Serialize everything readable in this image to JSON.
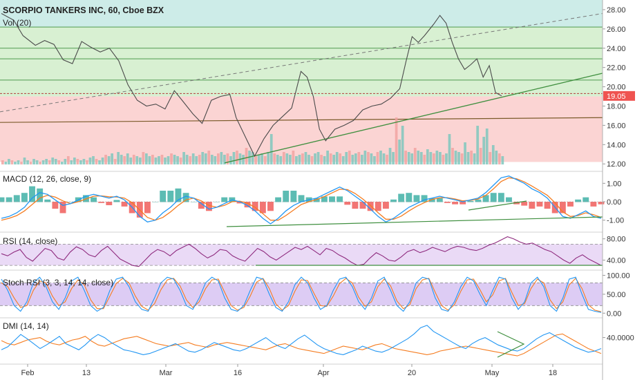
{
  "chart_data": {
    "type": "line",
    "title": "SCORPIO TANKERS INC, 60, Cboe BZX",
    "price": {
      "overlay_label": "Vol (20)",
      "last_price": "19.05",
      "ylim": [
        11.8,
        29.0
      ],
      "ticks": [
        "28.00",
        "26.00",
        "24.00",
        "22.00",
        "20.00",
        "18.00",
        "16.00",
        "14.00",
        "12.00"
      ],
      "tick_values": [
        28,
        26,
        24,
        22,
        20,
        18,
        16,
        14,
        12
      ],
      "horizontal_levels": [
        26.2,
        24.0,
        22.9,
        20.7,
        19.3
      ],
      "zone_split": 19.0,
      "support_level": 16.8,
      "series": [
        {
          "x": 0,
          "y": 27.6
        },
        {
          "x": 4,
          "y": 26.9
        },
        {
          "x": 7,
          "y": 25.3
        },
        {
          "x": 11,
          "y": 24.3
        },
        {
          "x": 14,
          "y": 24.8
        },
        {
          "x": 17,
          "y": 24.4
        },
        {
          "x": 20,
          "y": 22.8
        },
        {
          "x": 23,
          "y": 22.4
        },
        {
          "x": 26,
          "y": 24.7
        },
        {
          "x": 29,
          "y": 24.1
        },
        {
          "x": 32,
          "y": 23.6
        },
        {
          "x": 35,
          "y": 24.0
        },
        {
          "x": 38,
          "y": 22.7
        },
        {
          "x": 41,
          "y": 20.2
        },
        {
          "x": 44,
          "y": 18.6
        },
        {
          "x": 47,
          "y": 18.0
        },
        {
          "x": 50,
          "y": 18.2
        },
        {
          "x": 53,
          "y": 17.7
        },
        {
          "x": 56,
          "y": 19.6
        },
        {
          "x": 59,
          "y": 18.4
        },
        {
          "x": 62,
          "y": 17.2
        },
        {
          "x": 65,
          "y": 16.2
        },
        {
          "x": 68,
          "y": 18.6
        },
        {
          "x": 71,
          "y": 19.0
        },
        {
          "x": 74,
          "y": 19.2
        },
        {
          "x": 76,
          "y": 16.8
        },
        {
          "x": 79,
          "y": 14.8
        },
        {
          "x": 82,
          "y": 12.8
        },
        {
          "x": 85,
          "y": 14.6
        },
        {
          "x": 88,
          "y": 16.0
        },
        {
          "x": 91,
          "y": 16.9
        },
        {
          "x": 94,
          "y": 17.8
        },
        {
          "x": 97,
          "y": 21.6
        },
        {
          "x": 99,
          "y": 21.0
        },
        {
          "x": 101,
          "y": 19.0
        },
        {
          "x": 103,
          "y": 15.6
        },
        {
          "x": 105,
          "y": 14.4
        },
        {
          "x": 108,
          "y": 15.6
        },
        {
          "x": 111,
          "y": 16.0
        },
        {
          "x": 114,
          "y": 16.5
        },
        {
          "x": 117,
          "y": 17.6
        },
        {
          "x": 120,
          "y": 18.0
        },
        {
          "x": 123,
          "y": 18.2
        },
        {
          "x": 126,
          "y": 18.8
        },
        {
          "x": 129,
          "y": 19.8
        },
        {
          "x": 131,
          "y": 22.6
        },
        {
          "x": 133,
          "y": 25.2
        },
        {
          "x": 135,
          "y": 24.6
        },
        {
          "x": 137,
          "y": 25.3
        },
        {
          "x": 140,
          "y": 26.5
        },
        {
          "x": 142,
          "y": 27.4
        },
        {
          "x": 144,
          "y": 26.6
        },
        {
          "x": 146,
          "y": 24.6
        },
        {
          "x": 148,
          "y": 22.9
        },
        {
          "x": 150,
          "y": 21.8
        },
        {
          "x": 152,
          "y": 22.3
        },
        {
          "x": 154,
          "y": 22.9
        },
        {
          "x": 156,
          "y": 21.0
        },
        {
          "x": 158,
          "y": 22.2
        },
        {
          "x": 160,
          "y": 19.4
        },
        {
          "x": 162,
          "y": 19.05
        }
      ]
    },
    "volume": {
      "ylim": [
        0,
        40
      ],
      "values": [
        3,
        2,
        4,
        3,
        2,
        3,
        2,
        5,
        3,
        2,
        4,
        3,
        2,
        3,
        4,
        3,
        5,
        4,
        3,
        2,
        4,
        6,
        3,
        5,
        4,
        3,
        4,
        3,
        5,
        6,
        4,
        3,
        5,
        7,
        6,
        8,
        4,
        9,
        7,
        6,
        8,
        5,
        7,
        6,
        5,
        9,
        8,
        6,
        7,
        5,
        6,
        7,
        5,
        6,
        8,
        7,
        6,
        5,
        9,
        7,
        6,
        8,
        6,
        7,
        9,
        8,
        10,
        7,
        6,
        8,
        9,
        7,
        8,
        6,
        9,
        10,
        8,
        7,
        12,
        10,
        9,
        6,
        7,
        8,
        6,
        9,
        22,
        8,
        7,
        6,
        9,
        8,
        7,
        10,
        6,
        7,
        8,
        9,
        7,
        6,
        8,
        9,
        7,
        6,
        10,
        8,
        7,
        9,
        8,
        6,
        9,
        10,
        7,
        8,
        9,
        7,
        10,
        9,
        8,
        6,
        9,
        10,
        8,
        7,
        12,
        9,
        34,
        18,
        28,
        10,
        9,
        8,
        12,
        10,
        9,
        7,
        11,
        9,
        8,
        10,
        9,
        7,
        8,
        22,
        12,
        10,
        9,
        8,
        16,
        9,
        10,
        8,
        28,
        12,
        20,
        26,
        9,
        14,
        10,
        8,
        6
      ]
    },
    "macd": {
      "title": "MACD (12, 26, close, 9)",
      "ticks": [
        "1.00",
        "0.00",
        "-1.00"
      ],
      "tick_values": [
        1,
        0,
        -1
      ],
      "ylim": [
        -1.5,
        1.5
      ],
      "macd_line": [
        -0.9,
        -0.8,
        -0.6,
        -0.3,
        0.2,
        0.5,
        0.4,
        0.1,
        -0.2,
        -0.1,
        0.1,
        0.3,
        0.4,
        0.3,
        0.2,
        0.3,
        0.1,
        -0.3,
        -0.8,
        -1.1,
        -1.0,
        -0.6,
        -0.3,
        0.1,
        0.3,
        0.2,
        -0.1,
        -0.4,
        -0.3,
        -0.1,
        0.1,
        0.0,
        -0.2,
        -0.5,
        -0.9,
        -1.2,
        -0.9,
        -0.5,
        -0.2,
        0.0,
        0.1,
        0.2,
        0.4,
        0.6,
        0.8,
        0.6,
        0.3,
        0.0,
        -0.4,
        -0.8,
        -1.1,
        -0.9,
        -0.6,
        -0.3,
        -0.1,
        0.1,
        0.2,
        0.3,
        0.2,
        0.1,
        0.0,
        0.1,
        0.2,
        0.5,
        0.9,
        1.3,
        1.4,
        1.2,
        1.0,
        0.7,
        0.5,
        0.2,
        -0.3,
        -0.8,
        -0.9,
        -0.7,
        -0.5,
        -0.8,
        -0.9
      ],
      "signal_line": [
        -1.0,
        -0.9,
        -0.75,
        -0.5,
        -0.15,
        0.2,
        0.35,
        0.25,
        0.05,
        -0.1,
        0.0,
        0.15,
        0.3,
        0.32,
        0.27,
        0.26,
        0.2,
        -0.05,
        -0.45,
        -0.85,
        -1.0,
        -0.85,
        -0.55,
        -0.2,
        0.1,
        0.2,
        0.05,
        -0.2,
        -0.3,
        -0.2,
        0.0,
        0.03,
        -0.08,
        -0.3,
        -0.65,
        -1.0,
        -1.0,
        -0.75,
        -0.45,
        -0.15,
        0.0,
        0.12,
        0.28,
        0.48,
        0.68,
        0.66,
        0.45,
        0.15,
        -0.2,
        -0.6,
        -0.95,
        -0.95,
        -0.78,
        -0.5,
        -0.25,
        -0.05,
        0.12,
        0.22,
        0.22,
        0.15,
        0.05,
        0.08,
        0.15,
        0.35,
        0.7,
        1.1,
        1.3,
        1.25,
        1.08,
        0.85,
        0.6,
        0.35,
        -0.05,
        -0.55,
        -0.8,
        -0.75,
        -0.6,
        -0.7,
        -0.85
      ]
    },
    "rsi": {
      "title": "RSI (14, close)",
      "ticks": [
        "80.00",
        "40.00"
      ],
      "tick_values": [
        80,
        40
      ],
      "ylim": [
        25,
        90
      ],
      "band": [
        30,
        70
      ],
      "values": [
        52,
        48,
        55,
        60,
        45,
        38,
        50,
        62,
        58,
        44,
        40,
        55,
        65,
        60,
        50,
        46,
        58,
        66,
        54,
        42,
        36,
        30,
        28,
        40,
        52,
        60,
        56,
        48,
        58,
        64,
        70,
        62,
        52,
        44,
        50,
        60,
        58,
        48,
        42,
        38,
        50,
        62,
        56,
        46,
        40,
        48,
        56,
        64,
        60,
        66,
        58,
        50,
        62,
        58,
        50,
        44,
        36,
        30,
        32,
        44,
        54,
        48,
        40,
        38,
        46,
        56,
        60,
        54,
        58,
        64,
        60,
        56,
        62,
        66,
        64,
        60,
        58,
        62,
        68,
        72,
        78,
        84,
        80,
        74,
        70,
        72,
        66,
        60,
        56,
        48,
        40,
        34,
        44,
        50,
        42,
        36,
        30
      ]
    },
    "stoch_rsi": {
      "title": "Stoch RSI (3, 3, 14, 14, close)",
      "ticks": [
        "100.00",
        "50.00",
        "0.00"
      ],
      "tick_values": [
        100,
        50,
        0
      ],
      "ylim": [
        -5,
        110
      ],
      "band": [
        20,
        80
      ],
      "k_line": [
        90,
        60,
        20,
        5,
        30,
        80,
        95,
        70,
        30,
        10,
        40,
        85,
        95,
        60,
        20,
        5,
        15,
        60,
        90,
        95,
        70,
        30,
        10,
        5,
        40,
        80,
        95,
        90,
        60,
        20,
        10,
        40,
        80,
        95,
        85,
        40,
        10,
        5,
        20,
        60,
        95,
        90,
        50,
        15,
        5,
        30,
        75,
        95,
        80,
        40,
        10,
        20,
        60,
        90,
        95,
        70,
        30,
        10,
        40,
        85,
        95,
        60,
        20,
        5,
        30,
        80,
        95,
        90,
        40,
        10,
        5,
        30,
        70,
        95,
        85,
        50,
        20,
        60,
        95,
        90,
        40,
        10,
        30,
        80,
        95,
        70,
        20,
        5,
        40,
        90,
        95,
        50,
        10,
        5,
        2
      ],
      "d_line": [
        80,
        70,
        40,
        15,
        20,
        60,
        85,
        80,
        45,
        20,
        30,
        65,
        88,
        75,
        35,
        12,
        12,
        45,
        78,
        92,
        80,
        45,
        18,
        8,
        25,
        62,
        88,
        92,
        72,
        35,
        15,
        30,
        65,
        88,
        90,
        55,
        20,
        8,
        15,
        45,
        82,
        92,
        65,
        25,
        8,
        20,
        58,
        88,
        86,
        52,
        20,
        18,
        45,
        78,
        92,
        80,
        42,
        18,
        30,
        70,
        90,
        72,
        32,
        12,
        22,
        65,
        88,
        92,
        55,
        20,
        8,
        22,
        58,
        88,
        90,
        62,
        30,
        48,
        85,
        92,
        55,
        20,
        25,
        65,
        90,
        80,
        35,
        12,
        30,
        75,
        92,
        65,
        22,
        8,
        4
      ]
    },
    "dmi": {
      "title": "DMI (14, 14)",
      "ticks": [
        "40.0000"
      ],
      "tick_values": [
        40
      ],
      "ylim": [
        0,
        70
      ],
      "plus_di": [
        20,
        25,
        35,
        45,
        38,
        30,
        22,
        28,
        35,
        42,
        30,
        25,
        20,
        28,
        38,
        45,
        40,
        32,
        26,
        20,
        18,
        15,
        12,
        14,
        18,
        22,
        26,
        30,
        24,
        18,
        16,
        20,
        26,
        32,
        28,
        24,
        20,
        18,
        22,
        28,
        34,
        40,
        32,
        26,
        22,
        30,
        38,
        44,
        36,
        28,
        22,
        18,
        14,
        12,
        16,
        20,
        26,
        22,
        18,
        16,
        20,
        26,
        32,
        38,
        46,
        56,
        60,
        50,
        44,
        38,
        32,
        26,
        22,
        30,
        36,
        40,
        34,
        28,
        24,
        20,
        18,
        22,
        30,
        38,
        44,
        48,
        42,
        36,
        30,
        24,
        20,
        16,
        18,
        22
      ],
      "minus_di": [
        35,
        30,
        28,
        32,
        36,
        38,
        40,
        34,
        30,
        28,
        32,
        36,
        38,
        42,
        34,
        28,
        26,
        30,
        34,
        38,
        40,
        42,
        38,
        34,
        30,
        28,
        26,
        28,
        30,
        32,
        28,
        26,
        24,
        28,
        30,
        32,
        30,
        28,
        26,
        24,
        22,
        20,
        24,
        28,
        30,
        26,
        22,
        20,
        18,
        16,
        14,
        18,
        22,
        26,
        24,
        22,
        20,
        24,
        28,
        30,
        26,
        22,
        20,
        18,
        16,
        14,
        12,
        14,
        18,
        20,
        22,
        24,
        26,
        24,
        22,
        20,
        18,
        16,
        14,
        12,
        10,
        14,
        20,
        26,
        32,
        38,
        44,
        46,
        40,
        34,
        28,
        22,
        18,
        14
      ]
    },
    "x_axis": {
      "ticks": [
        "Feb",
        "13",
        "Mar",
        "16",
        "Apr",
        "20",
        "May",
        "18"
      ]
    }
  }
}
